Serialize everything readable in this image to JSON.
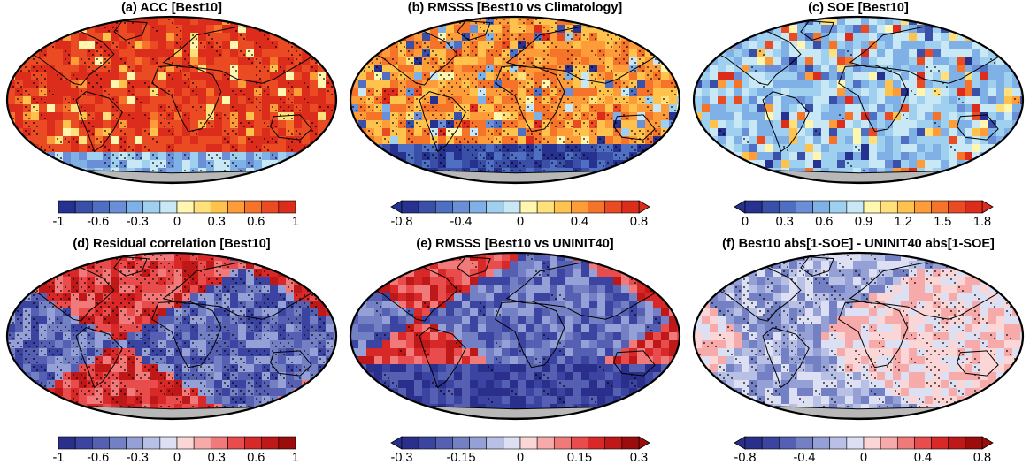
{
  "panels": [
    {
      "title": "(a) ACC [Best10]",
      "scheme": "rainbow_high",
      "colorbar": {
        "type": "rect",
        "ticks": [
          "-1",
          "-0.6",
          "-0.3",
          "0",
          "0.3",
          "0.6",
          "1"
        ],
        "colors": [
          "#27318f",
          "#3a50a8",
          "#4e6fc2",
          "#6a8fd6",
          "#7fb0e6",
          "#9fd0f0",
          "#c8e8f6",
          "#fff7b0",
          "#ffe07a",
          "#ffc24d",
          "#ff9c3a",
          "#f5742a",
          "#ea4b22",
          "#dc2d1c"
        ]
      },
      "dominant": "#e63020",
      "dot_density": 0.35
    },
    {
      "title": "(b) RMSSS [Best10 vs Climatology]",
      "scheme": "orange",
      "colorbar": {
        "type": "arrow",
        "ticks": [
          "-0.8",
          "-0.4",
          "0",
          "0.4",
          "0.8"
        ],
        "colors": [
          "#27318f",
          "#3a50a8",
          "#4e6fc2",
          "#6a8fd6",
          "#7fb0e6",
          "#9fd0f0",
          "#c8e8f6",
          "#fff7b0",
          "#ffe07a",
          "#ffc24d",
          "#ff9c3a",
          "#f5742a",
          "#ea4b22",
          "#dc2d1c"
        ]
      },
      "dominant": "#f7a23a",
      "dot_density": 0.55
    },
    {
      "title": "(c) SOE [Best10]",
      "scheme": "cyan",
      "colorbar": {
        "type": "arrow",
        "ticks": [
          "0",
          "0.3",
          "0.6",
          "0.9",
          "1.2",
          "1.5",
          "1.8"
        ],
        "colors": [
          "#27318f",
          "#3a50a8",
          "#4e6fc2",
          "#6a8fd6",
          "#7fb0e6",
          "#9fd0f0",
          "#c8e8f6",
          "#fff7b0",
          "#ffe07a",
          "#ffc24d",
          "#ff9c3a",
          "#f5742a",
          "#ea4b22",
          "#dc2d1c"
        ]
      },
      "dominant": "#5cc0ee",
      "dot_density": 0.05
    },
    {
      "title": "(d) Residual correlation [Best10]",
      "scheme": "redblue_mixed",
      "colorbar": {
        "type": "rect",
        "ticks": [
          "-1",
          "-0.6",
          "-0.3",
          "0",
          "0.3",
          "0.6",
          "1"
        ],
        "colors": [
          "#2b2f8c",
          "#3b44a0",
          "#5560b2",
          "#7380c4",
          "#95a0d6",
          "#b8c0e6",
          "#dde0f2",
          "#fbd6d6",
          "#f6aaaa",
          "#f07a7a",
          "#e84c4c",
          "#d82828",
          "#bf1818",
          "#9c0c0c"
        ]
      },
      "dominant": "#e24646",
      "dot_density": 0.6
    },
    {
      "title": "(e) RMSSS [Best10 vs UNINIT40]",
      "scheme": "redblue_mixed",
      "colorbar": {
        "type": "arrow",
        "ticks": [
          "-0.3",
          "-0.15",
          "0",
          "0.15",
          "0.3"
        ],
        "colors": [
          "#2b2f8c",
          "#3b44a0",
          "#5560b2",
          "#7380c4",
          "#95a0d6",
          "#b8c0e6",
          "#dde0f2",
          "#fbd6d6",
          "#f6aaaa",
          "#f07a7a",
          "#e84c4c",
          "#d82828",
          "#bf1818",
          "#9c0c0c"
        ]
      },
      "dominant": "#3f45b0",
      "dot_density": 0.1
    },
    {
      "title": "(f) Best10 abs[1-SOE] - UNINIT40 abs[1-SOE]",
      "scheme": "pale_mixed",
      "colorbar": {
        "type": "arrow",
        "ticks": [
          "-0.8",
          "-0.4",
          "0",
          "0.4",
          "0.8"
        ],
        "colors": [
          "#2b2f8c",
          "#3b44a0",
          "#5560b2",
          "#7380c4",
          "#95a0d6",
          "#b8c0e6",
          "#dde0f2",
          "#fbd6d6",
          "#f6aaaa",
          "#f07a7a",
          "#e84c4c",
          "#d82828",
          "#bf1818",
          "#9c0c0c"
        ]
      },
      "dominant": "#f2b8b8",
      "dot_density": 0.35
    }
  ]
}
